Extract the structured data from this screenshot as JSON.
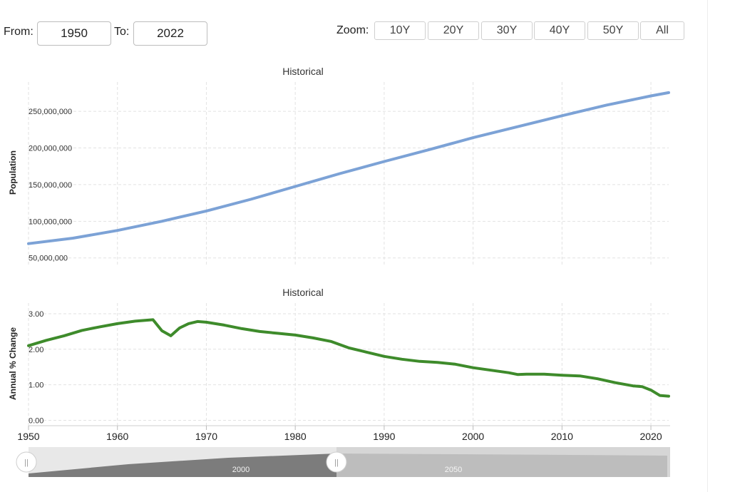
{
  "range": {
    "from_label": "From:",
    "from_value": "1950",
    "to_label": "To:",
    "to_value": "2022"
  },
  "zoom": {
    "label": "Zoom:",
    "buttons": [
      "10Y",
      "20Y",
      "30Y",
      "40Y",
      "50Y",
      "All"
    ]
  },
  "navigator": {
    "labels": [
      "2000",
      "2050"
    ],
    "handle_glyph": "||"
  },
  "chart_data": [
    {
      "type": "line",
      "title": "Historical",
      "ylabel": "Population",
      "xlabel": "",
      "xlim": [
        1950,
        2022
      ],
      "ylim": [
        40000000,
        290000000
      ],
      "grid": true,
      "color": "#7ca2d6",
      "y_ticks": [
        "50,000,000",
        "100,000,000",
        "150,000,000",
        "200,000,000",
        "250,000,000"
      ],
      "series": [
        {
          "x": [
            1950,
            1955,
            1960,
            1965,
            1970,
            1975,
            1980,
            1985,
            1990,
            1995,
            2000,
            2005,
            2010,
            2015,
            2020,
            2022
          ],
          "values": [
            69500000,
            77000000,
            87500000,
            100000000,
            114000000,
            130000000,
            147500000,
            165000000,
            181500000,
            197500000,
            214000000,
            229000000,
            244000000,
            258500000,
            271000000,
            275500000
          ]
        }
      ]
    },
    {
      "type": "line",
      "title": "Historical",
      "ylabel": "Annual % Change",
      "xlabel": "",
      "xlim": [
        1950,
        2022
      ],
      "ylim": [
        -0.15,
        3.3
      ],
      "grid": true,
      "color": "#3e8b2b",
      "y_ticks": [
        "0.00",
        "1.00",
        "2.00",
        "3.00"
      ],
      "x_ticks": [
        "1950",
        "1960",
        "1970",
        "1980",
        "1990",
        "2000",
        "2010",
        "2020"
      ],
      "series": [
        {
          "x": [
            1950,
            1952,
            1954,
            1956,
            1958,
            1960,
            1962,
            1964,
            1965,
            1966,
            1967,
            1968,
            1969,
            1970,
            1972,
            1974,
            1976,
            1978,
            1980,
            1982,
            1984,
            1986,
            1988,
            1990,
            1992,
            1994,
            1996,
            1998,
            2000,
            2002,
            2004,
            2005,
            2006,
            2008,
            2010,
            2012,
            2014,
            2016,
            2018,
            2019,
            2020,
            2021,
            2022
          ],
          "values": [
            2.1,
            2.25,
            2.38,
            2.53,
            2.63,
            2.72,
            2.79,
            2.83,
            2.52,
            2.38,
            2.6,
            2.72,
            2.78,
            2.76,
            2.68,
            2.58,
            2.5,
            2.45,
            2.4,
            2.32,
            2.22,
            2.04,
            1.92,
            1.8,
            1.72,
            1.66,
            1.63,
            1.58,
            1.48,
            1.41,
            1.34,
            1.29,
            1.3,
            1.3,
            1.27,
            1.25,
            1.17,
            1.06,
            0.97,
            0.95,
            0.85,
            0.7,
            0.68
          ]
        }
      ]
    }
  ]
}
